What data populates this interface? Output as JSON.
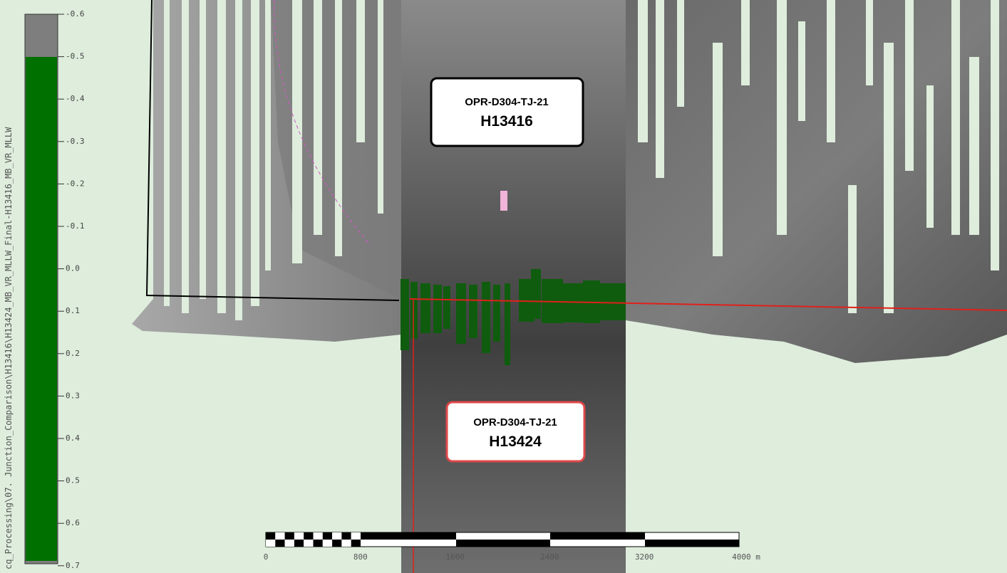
{
  "colorbar": {
    "ticks": [
      "-0.6",
      "-0.5",
      "-0.4",
      "-0.3",
      "-0.2",
      "-0.1",
      "0.0",
      "0.1",
      "0.2",
      "0.3",
      "0.4",
      "0.5",
      "0.6",
      "0.7"
    ]
  },
  "file_path": "cq_Processing\\07. Junction_Comparison\\H13416\\H13424_MB_VR_MLLW_Final-H13416_MB_VR_MLLW",
  "labels": [
    {
      "project": "OPR-D304-TJ-21",
      "sheet": "H13416"
    },
    {
      "project": "OPR-D304-TJ-21",
      "sheet": "H13424"
    }
  ],
  "scale_bar": {
    "labels": [
      "0",
      "800",
      "1600",
      "2400",
      "3200",
      "4000 m"
    ]
  }
}
